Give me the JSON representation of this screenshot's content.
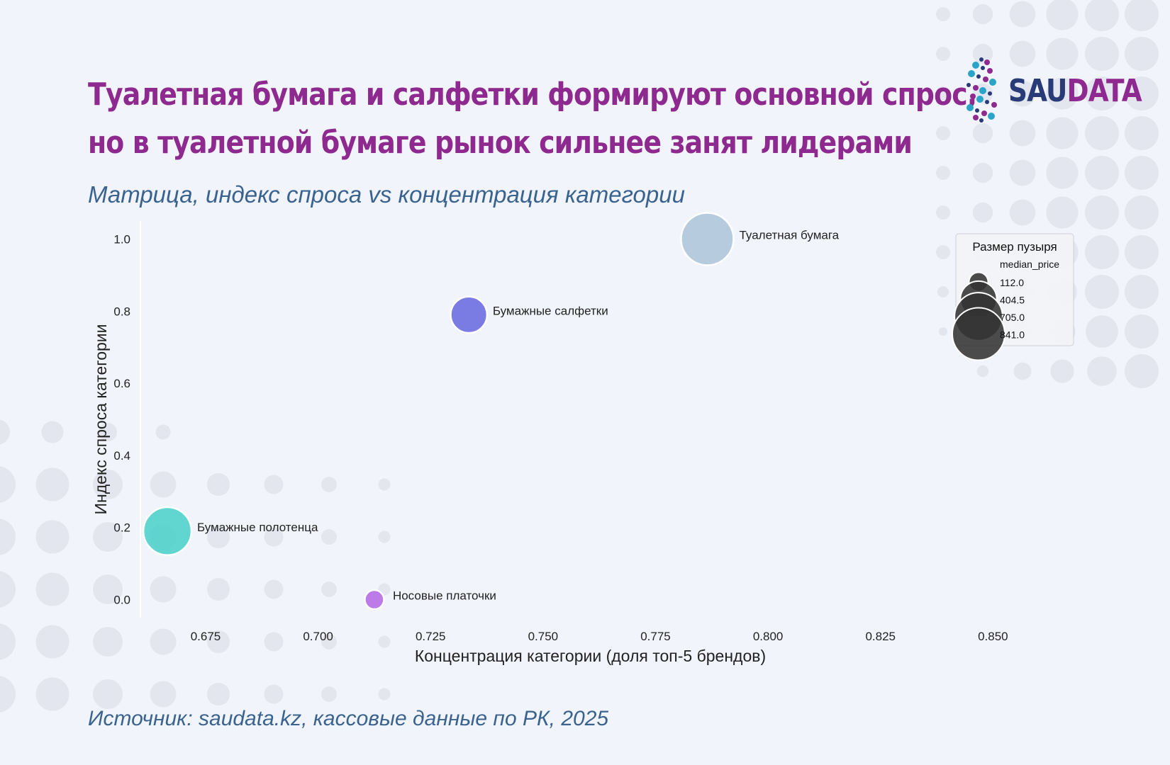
{
  "header": {
    "title_line1": "Туалетная бумага и салфетки формируют основной спрос,",
    "title_line2": "но в туалетной бумаге рынок сильнее занят лидерами",
    "subtitle": "Матрица, индекс спроса vs концентрация категории"
  },
  "logo": {
    "part1": "SAU",
    "part2": "DATA"
  },
  "footer": {
    "source": "Источник: saudata.kz, кассовые данные по РК,  2025"
  },
  "colors": {
    "title": "#8e2a8f",
    "subtitle": "#3a6390",
    "background": "#f1f4fa",
    "legend_marker": "#333333"
  },
  "chart_data": {
    "type": "scatter",
    "xlabel": "Концентрация категории (доля топ-5 брендов)",
    "ylabel": "Индекс спроса категории",
    "xlim": [
      0.6605,
      0.8605
    ],
    "ylim": [
      -0.05,
      1.05
    ],
    "x_ticks": [
      0.675,
      0.7,
      0.725,
      0.75,
      0.775,
      0.8,
      0.825,
      0.85
    ],
    "x_tick_labels": [
      "0.675",
      "0.700",
      "0.725",
      "0.750",
      "0.775",
      "0.800",
      "0.825",
      "0.850"
    ],
    "y_ticks": [
      0.0,
      0.2,
      0.4,
      0.6,
      0.8,
      1.0
    ],
    "y_tick_labels": [
      "0.0",
      "0.2",
      "0.4",
      "0.6",
      "0.8",
      "1.0"
    ],
    "grid": false,
    "points": [
      {
        "label": "Туалетная бумага",
        "x": 0.7865,
        "y": 1.0,
        "size": 841.0,
        "color": "#aec5d9"
      },
      {
        "label": "Бумажные салфетки",
        "x": 0.7335,
        "y": 0.79,
        "size": 404.5,
        "color": "#6a6ae0"
      },
      {
        "label": "Бумажные полотенца",
        "x": 0.6665,
        "y": 0.19,
        "size": 705.0,
        "color": "#4cd0ca"
      },
      {
        "label": "Носовые платочки",
        "x": 0.7125,
        "y": 0.0,
        "size": 112.0,
        "color": "#b46ae4"
      }
    ],
    "legend": {
      "title": "Размер пузыря",
      "subtitle": "median_price",
      "placement": "top-right",
      "entries": [
        {
          "value": 112.0,
          "label": "112.0"
        },
        {
          "value": 404.5,
          "label": "404.5"
        },
        {
          "value": 705.0,
          "label": "705.0"
        },
        {
          "value": 841.0,
          "label": "841.0"
        }
      ]
    }
  }
}
